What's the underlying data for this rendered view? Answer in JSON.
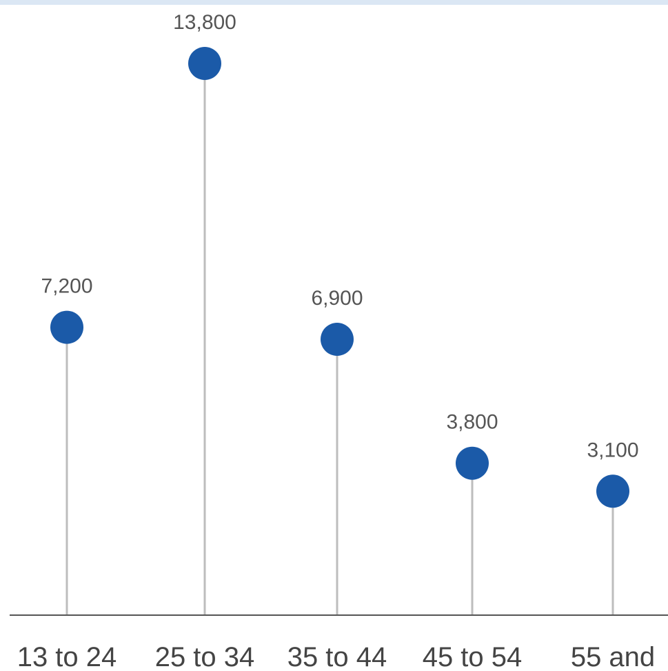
{
  "chart_data": {
    "type": "lollipop",
    "categories": [
      "13 to 24",
      "25 to 34",
      "35 to 44",
      "45 to 54",
      "55 and"
    ],
    "values": [
      7200,
      13800,
      6900,
      3800,
      3100
    ],
    "value_labels": [
      "7,200",
      "13,800",
      "6,900",
      "3,800",
      "3,100"
    ],
    "title": "",
    "xlabel": "",
    "ylabel": "",
    "ylim": [
      0,
      14500
    ],
    "grid": false,
    "legend": "none",
    "colors": {
      "marker": "#1b5aa8",
      "stem": "#bdbdbd",
      "baseline": "#555555",
      "value_text": "#555555",
      "category_text": "#444444"
    }
  }
}
